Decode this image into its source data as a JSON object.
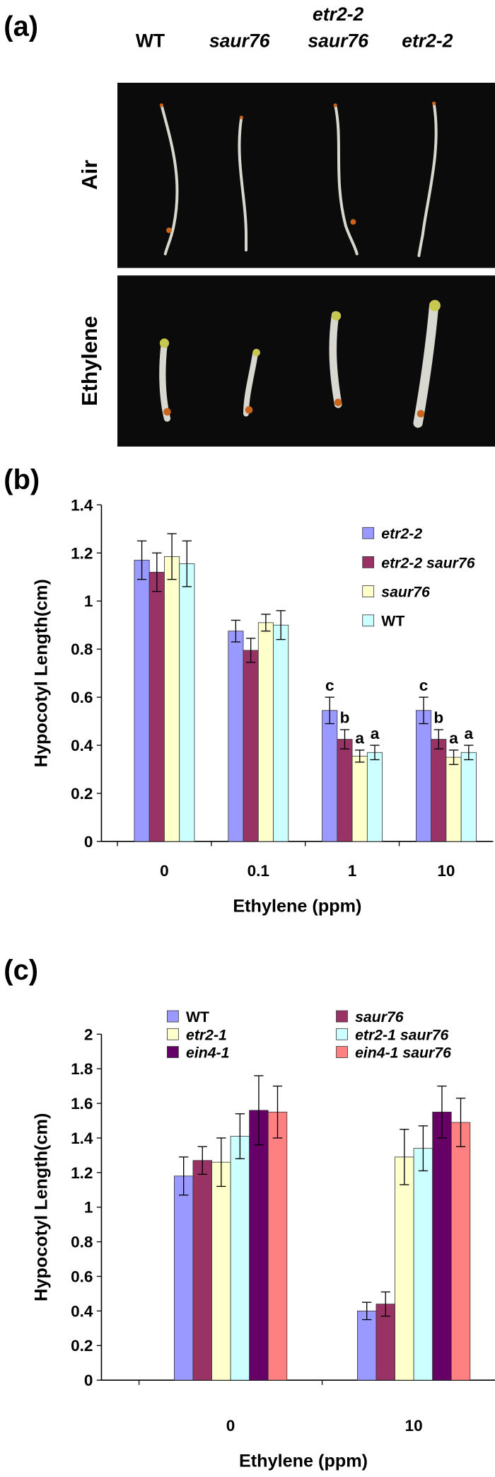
{
  "panel_a": {
    "label": "(a)",
    "columns": [
      [
        "WT"
      ],
      [
        "saur76"
      ],
      [
        "etr2-2",
        "saur76"
      ],
      [
        "etr2-2"
      ]
    ],
    "columns_italic": [
      false,
      true,
      true,
      true
    ],
    "rows": [
      "Air",
      "Ethylene"
    ]
  },
  "chart_data": [
    {
      "type": "bar",
      "panel_label": "(b)",
      "y_label": "Hypocotyl Length(cm)",
      "x_label": "Ethylene (ppm)",
      "categories": [
        "0",
        "0.1",
        "1",
        "10"
      ],
      "ylim": [
        0,
        1.4
      ],
      "yticks": [
        0,
        0.2,
        0.4,
        0.6,
        0.8,
        1,
        1.2,
        1.4
      ],
      "legend": "upper right",
      "series": [
        {
          "name": "etr2-2",
          "italic": true,
          "color": "#9999ff",
          "values": [
            1.17,
            0.875,
            0.545,
            0.545
          ],
          "errors": [
            0.08,
            0.045,
            0.055,
            0.055
          ],
          "letters": [
            null,
            null,
            "c",
            "c"
          ]
        },
        {
          "name": "etr2-2 saur76",
          "italic": true,
          "color": "#993366",
          "values": [
            1.12,
            0.795,
            0.425,
            0.425
          ],
          "errors": [
            0.08,
            0.05,
            0.04,
            0.04
          ],
          "letters": [
            null,
            null,
            "b",
            "b"
          ]
        },
        {
          "name": "saur76",
          "italic": true,
          "color": "#ffffcc",
          "values": [
            1.185,
            0.91,
            0.355,
            0.35
          ],
          "errors": [
            0.095,
            0.035,
            0.025,
            0.03
          ],
          "letters": [
            null,
            null,
            "a",
            "a"
          ]
        },
        {
          "name": "WT",
          "italic": false,
          "color": "#ccffff",
          "values": [
            1.155,
            0.9,
            0.37,
            0.37
          ],
          "errors": [
            0.095,
            0.06,
            0.03,
            0.03
          ],
          "letters": [
            null,
            null,
            "a",
            "a"
          ]
        }
      ]
    },
    {
      "type": "bar",
      "panel_label": "(c)",
      "y_label": "Hypocotyl Length(cm)",
      "x_label": "Ethylene (ppm)",
      "categories": [
        "0",
        "10"
      ],
      "ylim": [
        0,
        2
      ],
      "yticks": [
        0,
        0.2,
        0.4,
        0.6,
        0.8,
        1,
        1.2,
        1.4,
        1.6,
        1.8,
        2
      ],
      "legend": "upper center",
      "series": [
        {
          "name": "WT",
          "italic": false,
          "color": "#9999ff",
          "values": [
            1.18,
            0.4
          ],
          "errors": [
            0.11,
            0.05
          ]
        },
        {
          "name": "saur76",
          "italic": true,
          "color": "#993366",
          "values": [
            1.27,
            0.44
          ],
          "errors": [
            0.08,
            0.07
          ]
        },
        {
          "name": "etr2-1",
          "italic": true,
          "color": "#ffffcc",
          "values": [
            1.26,
            1.29
          ],
          "errors": [
            0.14,
            0.16
          ]
        },
        {
          "name": "etr2-1 saur76",
          "italic": true,
          "color": "#ccffff",
          "values": [
            1.41,
            1.34
          ],
          "errors": [
            0.13,
            0.13
          ]
        },
        {
          "name": "ein4-1",
          "italic": true,
          "color": "#660066",
          "values": [
            1.56,
            1.55
          ],
          "errors": [
            0.2,
            0.15
          ]
        },
        {
          "name": "ein4-1 saur76",
          "italic": true,
          "color": "#ff8080",
          "values": [
            1.55,
            1.49
          ],
          "errors": [
            0.15,
            0.14
          ]
        }
      ]
    }
  ]
}
